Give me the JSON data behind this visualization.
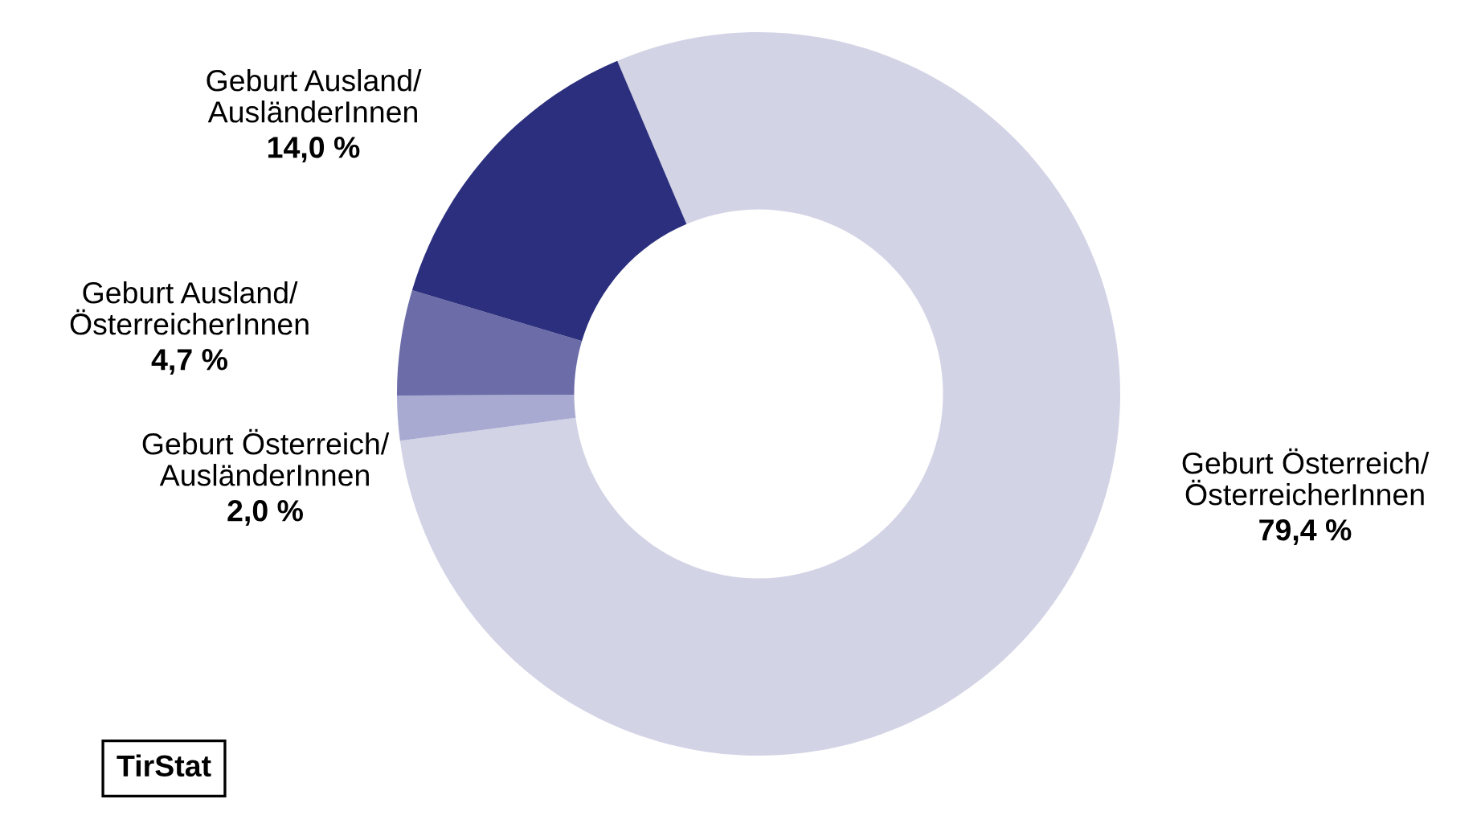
{
  "chart_data": {
    "type": "donut",
    "categories": [
      "Geburt Österreich/\nÖsterreicherInnen",
      "Geburt Österreich/\nAusländerInnen",
      "Geburt Ausland/\nÖsterreicherInnen",
      "Geburt Ausland/\nAusländerInnen"
    ],
    "values": [
      79.4,
      2.0,
      4.7,
      14.0
    ],
    "value_labels": [
      "79,4 %",
      "2,0 %",
      "4,7 %",
      "14,0 %"
    ],
    "colors": [
      "#d3d3e6",
      "#a9aad2",
      "#6b6ca8",
      "#2b2f7d"
    ],
    "annotations": [
      "TirStat"
    ],
    "legend": false
  }
}
